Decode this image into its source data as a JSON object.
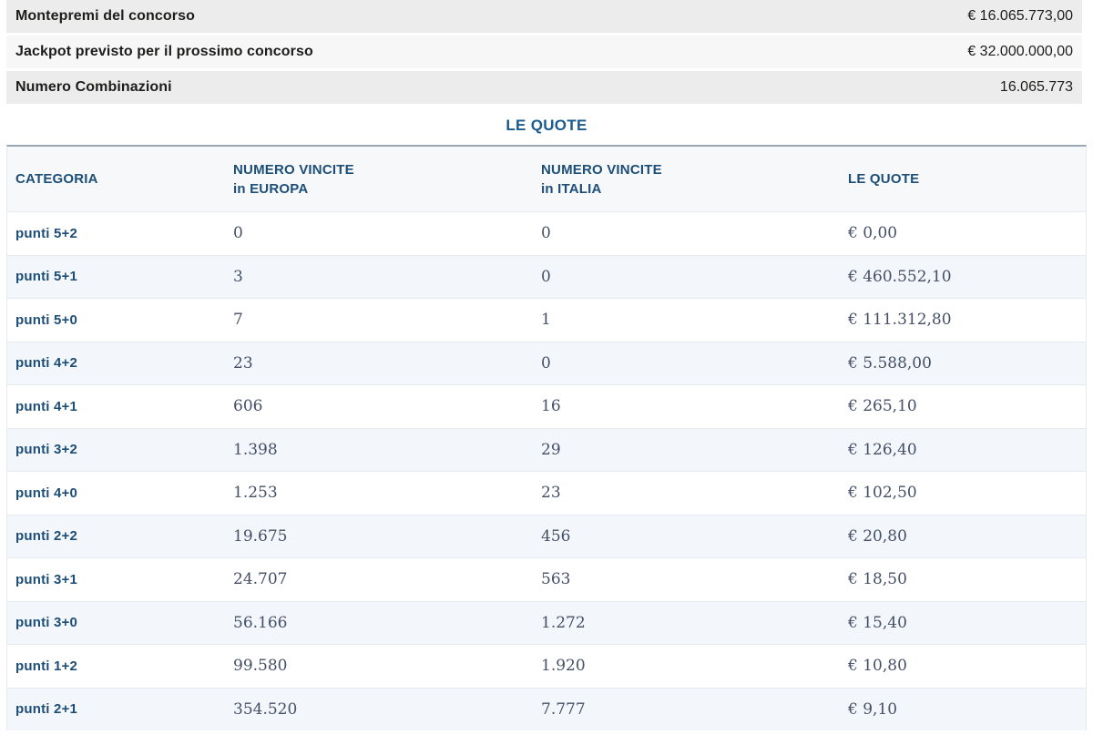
{
  "colors": {
    "accent_blue": "#1d4e78",
    "title_blue": "#1a5a8c",
    "number_gray": "#454f67",
    "summary_bg": "#ececec",
    "summary_bg_light": "#f7f7f7",
    "row_alt_bg": "#f3f7fb",
    "header_bg": "#f6f8fa"
  },
  "summary": {
    "rows": [
      {
        "label": "Montepremi del concorso",
        "value": "€ 16.065.773,00"
      },
      {
        "label": "Jackpot previsto per il prossimo concorso",
        "value": "€ 32.000.000,00"
      },
      {
        "label": "Numero Combinazioni",
        "value": "16.065.773"
      }
    ]
  },
  "quotes": {
    "title": "LE QUOTE",
    "headers": {
      "categoria": "CATEGORIA",
      "europa_line1": "NUMERO VINCITE",
      "europa_line2": "in EUROPA",
      "italia_line1": "NUMERO VINCITE",
      "italia_line2": "in ITALIA",
      "quote": "LE QUOTE"
    },
    "rows": [
      {
        "categoria": "punti 5+2",
        "vincite_europa": "0",
        "vincite_italia": "0",
        "quota": "€ 0,00"
      },
      {
        "categoria": "punti 5+1",
        "vincite_europa": "3",
        "vincite_italia": "0",
        "quota": "€ 460.552,10"
      },
      {
        "categoria": "punti 5+0",
        "vincite_europa": "7",
        "vincite_italia": "1",
        "quota": "€ 111.312,80"
      },
      {
        "categoria": "punti 4+2",
        "vincite_europa": "23",
        "vincite_italia": "0",
        "quota": "€ 5.588,00"
      },
      {
        "categoria": "punti 4+1",
        "vincite_europa": "606",
        "vincite_italia": "16",
        "quota": "€ 265,10"
      },
      {
        "categoria": "punti 3+2",
        "vincite_europa": "1.398",
        "vincite_italia": "29",
        "quota": "€ 126,40"
      },
      {
        "categoria": "punti 4+0",
        "vincite_europa": "1.253",
        "vincite_italia": "23",
        "quota": "€ 102,50"
      },
      {
        "categoria": "punti 2+2",
        "vincite_europa": "19.675",
        "vincite_italia": "456",
        "quota": "€ 20,80"
      },
      {
        "categoria": "punti 3+1",
        "vincite_europa": "24.707",
        "vincite_italia": "563",
        "quota": "€ 18,50"
      },
      {
        "categoria": "punti 3+0",
        "vincite_europa": "56.166",
        "vincite_italia": "1.272",
        "quota": "€ 15,40"
      },
      {
        "categoria": "punti 1+2",
        "vincite_europa": "99.580",
        "vincite_italia": "1.920",
        "quota": "€ 10,80"
      },
      {
        "categoria": "punti 2+1",
        "vincite_europa": "354.520",
        "vincite_italia": "7.777",
        "quota": "€ 9,10"
      }
    ]
  }
}
